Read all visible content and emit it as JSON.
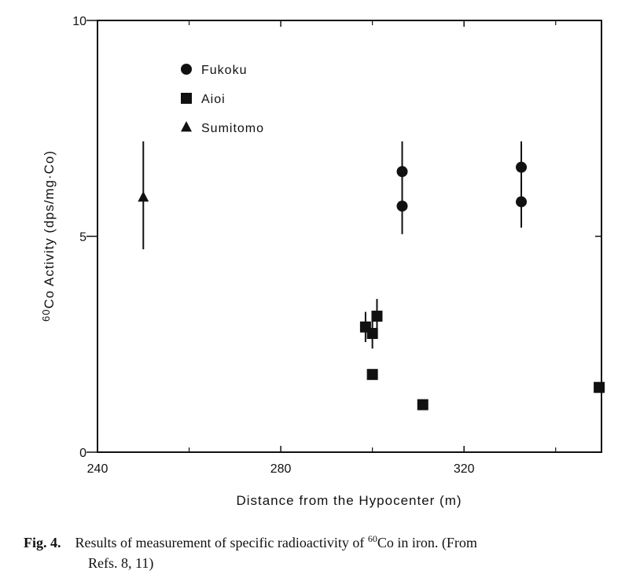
{
  "chart_data": {
    "type": "scatter",
    "xlabel": "Distance from the Hypocenter (m)",
    "ylabel_prefix": "60",
    "ylabel_main": "Co Activity (dps/mg·Co)",
    "xlim": [
      240,
      350
    ],
    "ylim": [
      0,
      10
    ],
    "x_ticks": [
      {
        "value": 240,
        "label": "240"
      },
      {
        "value": 280,
        "label": "280"
      },
      {
        "value": 320,
        "label": "320"
      }
    ],
    "y_ticks": [
      {
        "value": 0,
        "label": "0"
      },
      {
        "value": 5,
        "label": "5"
      },
      {
        "value": 10,
        "label": "10"
      }
    ],
    "legend_position": "top-left",
    "series": [
      {
        "name": "Fukoku",
        "marker": "circle",
        "points": [
          {
            "x": 306.5,
            "y": 6.5,
            "err_low": 5.85,
            "err_high": 7.2
          },
          {
            "x": 306.5,
            "y": 5.7,
            "err_low": 5.05,
            "err_high": 6.25
          },
          {
            "x": 332.5,
            "y": 6.6,
            "err_low": 6.0,
            "err_high": 7.2
          },
          {
            "x": 332.5,
            "y": 5.8,
            "err_low": 5.2,
            "err_high": 6.3
          }
        ]
      },
      {
        "name": "Aioi",
        "marker": "square",
        "points": [
          {
            "x": 298.5,
            "y": 2.9,
            "err_low": 2.55,
            "err_high": 3.25
          },
          {
            "x": 300.0,
            "y": 2.75,
            "err_low": 2.4,
            "err_high": 3.1
          },
          {
            "x": 301.0,
            "y": 3.15,
            "err_low": 2.8,
            "err_high": 3.55
          },
          {
            "x": 300.0,
            "y": 1.8
          },
          {
            "x": 311.0,
            "y": 1.1
          },
          {
            "x": 349.5,
            "y": 1.5
          }
        ]
      },
      {
        "name": "Sumitomo",
        "marker": "triangle",
        "points": [
          {
            "x": 250.0,
            "y": 5.9,
            "err_low": 4.7,
            "err_high": 7.2
          }
        ]
      }
    ]
  },
  "caption": {
    "label": "Fig. 4.",
    "text_before_sup": "Results of measurement of specific radioactivity of ",
    "sup": "60",
    "text_after_sup": "Co in iron. (From",
    "line2": "Refs. 8, 11)"
  }
}
